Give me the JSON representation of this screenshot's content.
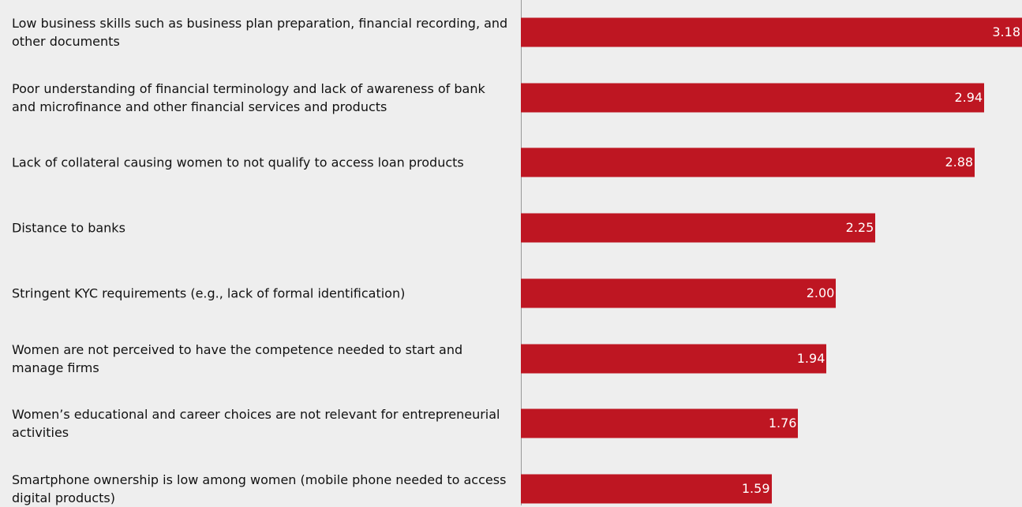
{
  "chart_data": {
    "type": "bar",
    "orientation": "horizontal",
    "color": "#be1622",
    "categories": [
      "Low business skills such as business plan preparation, financial recording, and other documents",
      "Poor understanding of financial terminology and lack of awareness of bank and microfinance and other financial services and products",
      "Lack of collateral causing women to not qualify to access loan products",
      "Distance to banks",
      "Stringent KYC requirements (e.g., lack of formal identification)",
      "Women are not perceived to have the competence needed to start and manage firms",
      "Women’s educational and career choices are not relevant for entrepreneurial activities",
      "Smartphone ownership is low among women (mobile phone needed to access digital products)"
    ],
    "values": [
      3.18,
      2.94,
      2.88,
      2.25,
      2,
      1.94,
      1.76,
      1.59
    ],
    "value_labels": [
      "3.18",
      "2.94",
      "2.88",
      "2.25",
      "2.00",
      "1.94",
      "1.76",
      "1.59"
    ]
  }
}
